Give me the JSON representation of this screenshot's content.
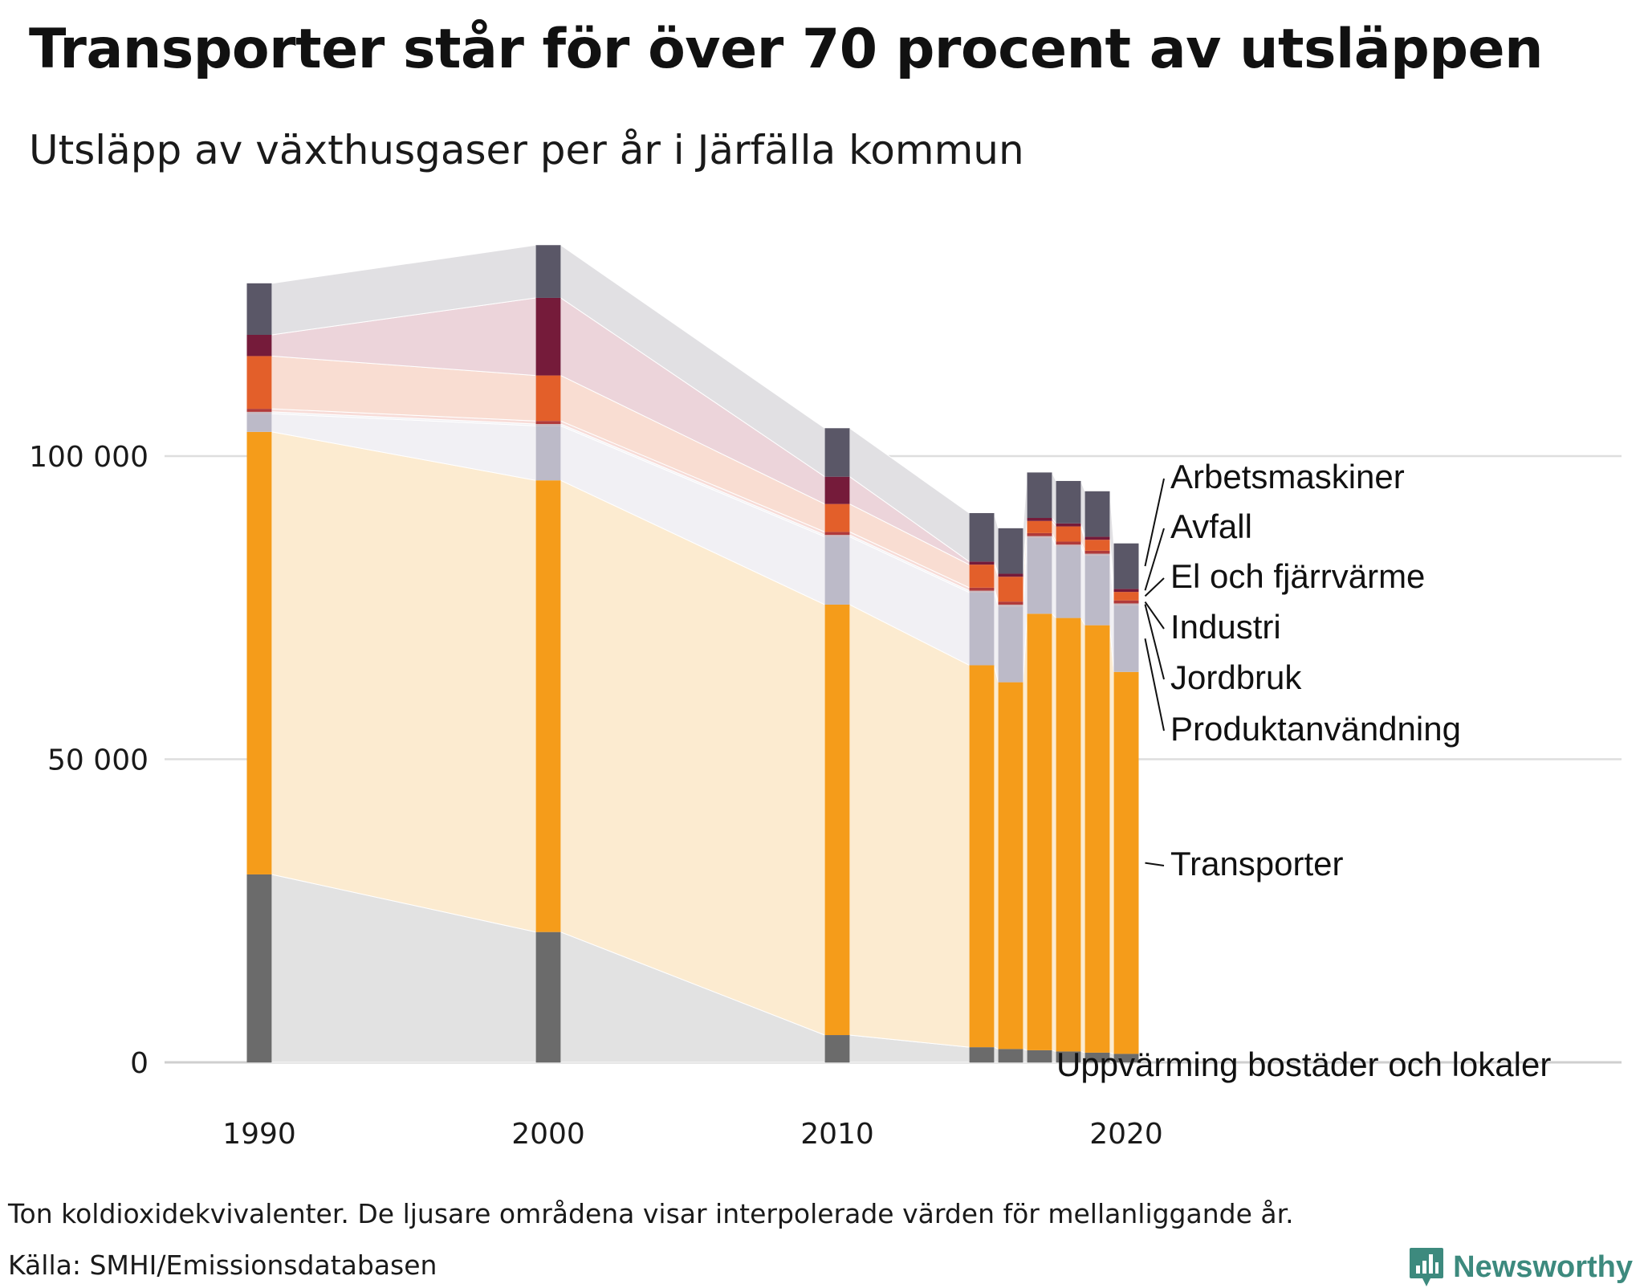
{
  "title": "Transporter står för över 70 procent av utsläppen",
  "subtitle": "Utsläpp av växthusgaser per år i Järfälla kommun",
  "footnote": "Ton koldioxidekvivalenter. De ljusare områdena visar interpolerade värden för mellanliggande år.",
  "source": "Källa: SMHI/Emissionsdatabasen",
  "brand": "Newsworthy",
  "chart_data": {
    "type": "bar",
    "stacked": true,
    "x": [
      1990,
      2000,
      2010,
      2015,
      2016,
      2017,
      2018,
      2019,
      2020
    ],
    "x_ticks": [
      "1990",
      "2000",
      "2010",
      "2020"
    ],
    "y_ticks": [
      "0",
      "50 000",
      "100 000"
    ],
    "ylim": [
      0,
      136000
    ],
    "grid": true,
    "interpolated_areas": true,
    "series": [
      {
        "name": "Uppvärming bostäder och lokaler",
        "color": "#6b6b6b",
        "area_color": "#e2e2e2",
        "values": [
          31000,
          21500,
          4500,
          2500,
          2200,
          2000,
          1800,
          1600,
          1400
        ]
      },
      {
        "name": "Transporter",
        "color": "#f59c1a",
        "area_color": "#fcebd0",
        "values": [
          73000,
          74500,
          71000,
          63000,
          60500,
          72000,
          71500,
          70500,
          63000
        ]
      },
      {
        "name": "Produktanvändning",
        "color": "#bcbac8",
        "area_color": "#f1f0f4",
        "values": [
          3000,
          9000,
          11200,
          12000,
          12500,
          12500,
          11800,
          11500,
          11000
        ]
      },
      {
        "name": "Jordbruk",
        "color": "#c8b7bd",
        "area_color": "#f1f0f4",
        "values": [
          300,
          300,
          300,
          300,
          300,
          300,
          300,
          300,
          300
        ]
      },
      {
        "name": "Industri",
        "color": "#b03a3a",
        "area_color": "#f7dcd8",
        "values": [
          500,
          500,
          500,
          500,
          500,
          500,
          500,
          500,
          500
        ]
      },
      {
        "name": "El och fjärrvärme",
        "color": "#e35f2a",
        "area_color": "#f9ddd2",
        "values": [
          8700,
          7500,
          4600,
          3800,
          4100,
          2000,
          2500,
          1800,
          1400
        ]
      },
      {
        "name": "Avfall",
        "color": "#751b3a",
        "area_color": "#ecd4da",
        "values": [
          3500,
          12800,
          4500,
          500,
          500,
          500,
          500,
          500,
          500
        ]
      },
      {
        "name": "Arbetsmaskiner",
        "color": "#5a5767",
        "area_color": "#e1e0e3",
        "values": [
          8500,
          8700,
          8000,
          8000,
          7500,
          7500,
          7000,
          7500,
          7500
        ]
      }
    ]
  }
}
